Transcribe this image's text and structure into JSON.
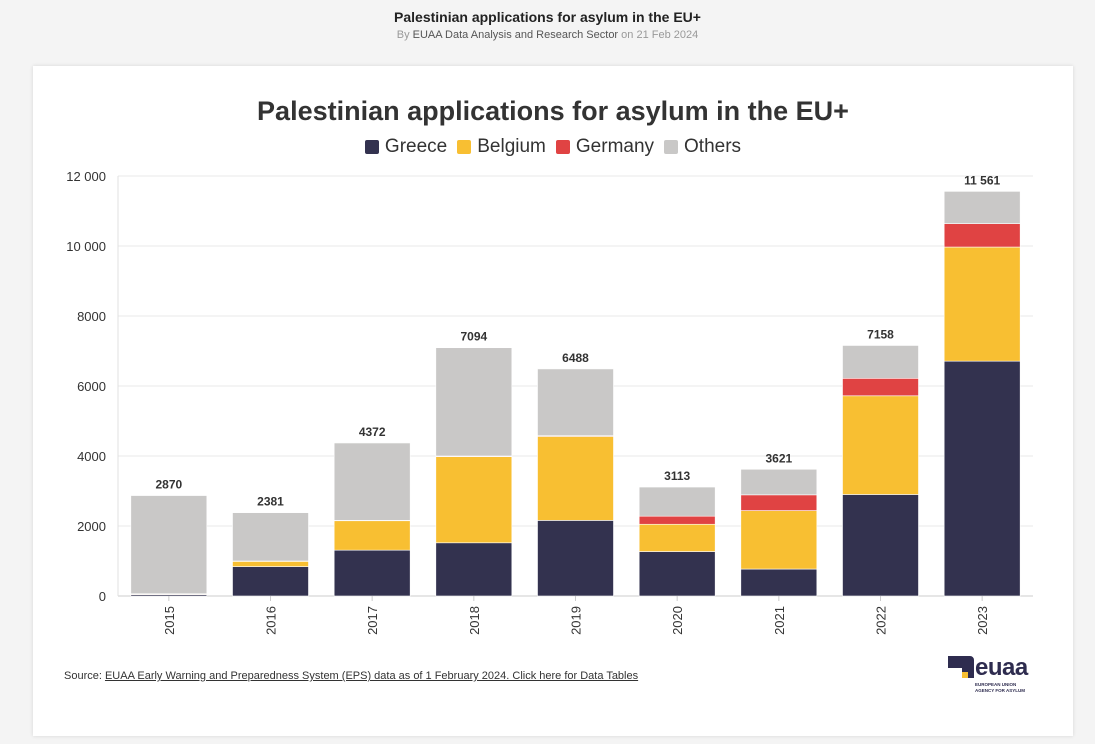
{
  "header": {
    "title": "Palestinian applications for asylum in the EU+",
    "byline_prefix": "By ",
    "author": "EUAA Data Analysis and Research Sector",
    "byline_date": " on 21 Feb 2024"
  },
  "colors": {
    "Greece": "#33324f",
    "Belgium": "#f8bf32",
    "Germany": "#e04343",
    "Others": "#c9c8c7"
  },
  "chart_data": {
    "type": "bar",
    "stacked": true,
    "title": "Palestinian applications for asylum in the EU+",
    "categories": [
      "2015",
      "2016",
      "2017",
      "2018",
      "2019",
      "2020",
      "2021",
      "2022",
      "2023"
    ],
    "series": [
      {
        "name": "Greece",
        "values": [
          40,
          840,
          1310,
          1520,
          2160,
          1270,
          770,
          2900,
          6710
        ]
      },
      {
        "name": "Belgium",
        "values": [
          15,
          150,
          840,
          2460,
          2400,
          780,
          1670,
          2820,
          3260
        ]
      },
      {
        "name": "Germany",
        "values": [
          10,
          10,
          10,
          20,
          20,
          230,
          450,
          500,
          670
        ]
      },
      {
        "name": "Others",
        "values": [
          2805,
          1381,
          2212,
          3094,
          1908,
          833,
          731,
          938,
          921
        ]
      }
    ],
    "totals": [
      "2870",
      "2381",
      "4372",
      "7094",
      "6488",
      "3113",
      "3621",
      "7158",
      "11 561"
    ],
    "y_ticks": [
      "0",
      "2000",
      "4000",
      "6000",
      "8000",
      "10 000",
      "12 000"
    ],
    "y_tick_values": [
      0,
      2000,
      4000,
      6000,
      8000,
      10000,
      12000
    ],
    "ylim": [
      0,
      12000
    ],
    "legend_position": "top-center",
    "grid": true
  },
  "source": {
    "prefix": "Source: ",
    "link_text": "EUAA Early Warning and Preparedness System (EPS) data as of 1 February 2024. Click here for Data Tables"
  },
  "logo": {
    "word": "euaa",
    "line1": "EUROPEAN UNION",
    "line2": "AGENCY FOR ASYLUM"
  }
}
